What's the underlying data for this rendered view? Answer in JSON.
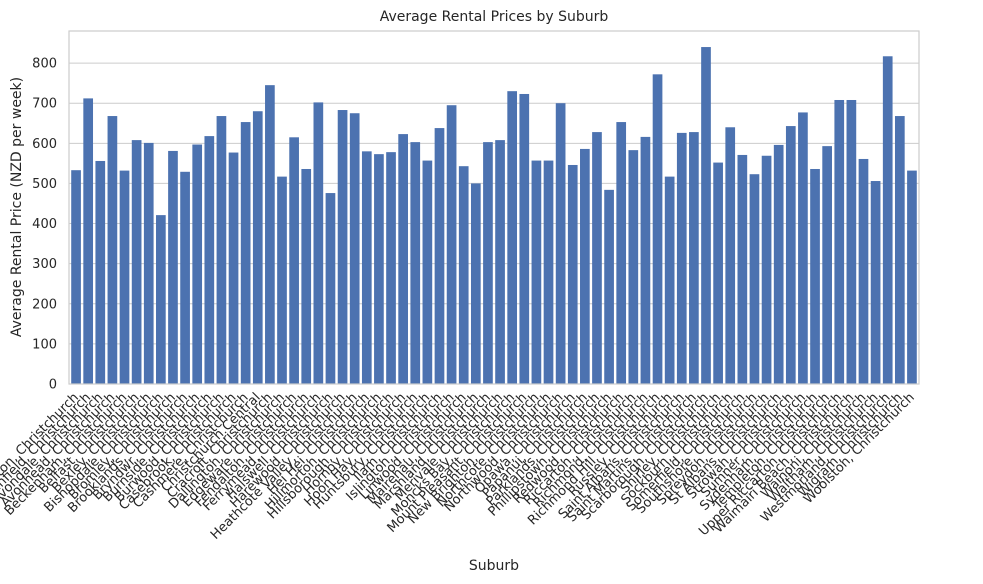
{
  "chart_data": {
    "type": "bar",
    "title": "Average Rental Prices by Suburb",
    "xlabel": "Suburb",
    "ylabel": "Average Rental Price (NZD per week)",
    "ylim": [
      0,
      880
    ],
    "yticks": [
      0,
      100,
      200,
      300,
      400,
      500,
      600,
      700,
      800
    ],
    "grid": true,
    "legend": "none",
    "colors": {
      "bar": "#4c72b0",
      "grid": "#cccccc",
      "text": "#262626"
    },
    "categories": [
      "Addington, Christchurch",
      "Aidanfield, Christchurch",
      "Avondale, Christchurch",
      "Avonhead, Christchurch",
      "Beckenham, Christchurch",
      "Belfast, Christchurch",
      "Bexley, Christchurch",
      "Bishopdale, Christchurch",
      "Bromley, Christchurch",
      "Brooklands, Christchurch",
      "Bryndwr, Christchurch",
      "Burnside, Christchurch",
      "Burwood, Christchurch",
      "Casebrook, Christchurch",
      "Cashmere, Christchurch",
      "Christchurch Central",
      "Cracroft, Christchurch",
      "Dallington, Christchurch",
      "Edgeware, Christchurch",
      "Fendalton, Christchurch",
      "Ferrymead, Christchurch",
      "Halswell, Christchurch",
      "Harewood, Christchurch",
      "Heathcote Valley, Christchurch",
      "Hei Hei, Christchurch",
      "Hillmorton, Christchurch",
      "Hillsborough, Christchurch",
      "Hornby, Christchurch",
      "Hoon Hay, Christchurch",
      "Huntsbury, Christchurch",
      "Ilam, Christchurch",
      "Islington, Christchurch",
      "Linwood, Christchurch",
      "Mairehau, Christchurch",
      "Marshland, Christchurch",
      "Merivale, Christchurch",
      "Moncks Bay, Christchurch",
      "Mount Pleasant, Christchurch",
      "New Brighton, Christchurch",
      "Northcote, Christchurch",
      "Northwood, Christchurch",
      "Opawa, Christchurch",
      "Papanui, Christchurch",
      "Parklands, Christchurch",
      "Phillipstown, Christchurch",
      "Redwood, Christchurch",
      "Riccarton, Christchurch",
      "Richmond, Christchurch",
      "Richmond Hill, Christchurch",
      "Russley, Christchurch",
      "Saint Albans, Christchurch",
      "Saint Martins, Christchurch",
      "Scarborough, Christchurch",
      "Shirley, Christchurch",
      "Sockburn, Christchurch",
      "Somerfield, Christchurch",
      "Southshore, Christchurch",
      "Spreydon, Christchurch",
      "St Albans, Christchurch",
      "Strowan, Christchurch",
      "Sumner, Christchurch",
      "Sydenham, Christchurch",
      "Templeton, Christchurch",
      "Upper Riccarton, Christchurch",
      "Waimairi Beach, Christchurch",
      "Wainoni, Christchurch",
      "Waltham, Christchurch",
      "Westmorland, Christchurch",
      "Wigram, Christchurch",
      "Woolston, Christchurch"
    ],
    "values": [
      533,
      712,
      556,
      668,
      532,
      608,
      601,
      421,
      581,
      529,
      597,
      618,
      668,
      577,
      653,
      680,
      745,
      517,
      615,
      536,
      702,
      476,
      683,
      675,
      580,
      573,
      578,
      623,
      603,
      557,
      638,
      695,
      543,
      500,
      603,
      608,
      730,
      723,
      557,
      557,
      700,
      546,
      586,
      628,
      484,
      653,
      583,
      616,
      772,
      517,
      626,
      628,
      840,
      552,
      640,
      571,
      523,
      569,
      596,
      643,
      677,
      536,
      593,
      708,
      708,
      561,
      506,
      817,
      668,
      532
    ]
  }
}
